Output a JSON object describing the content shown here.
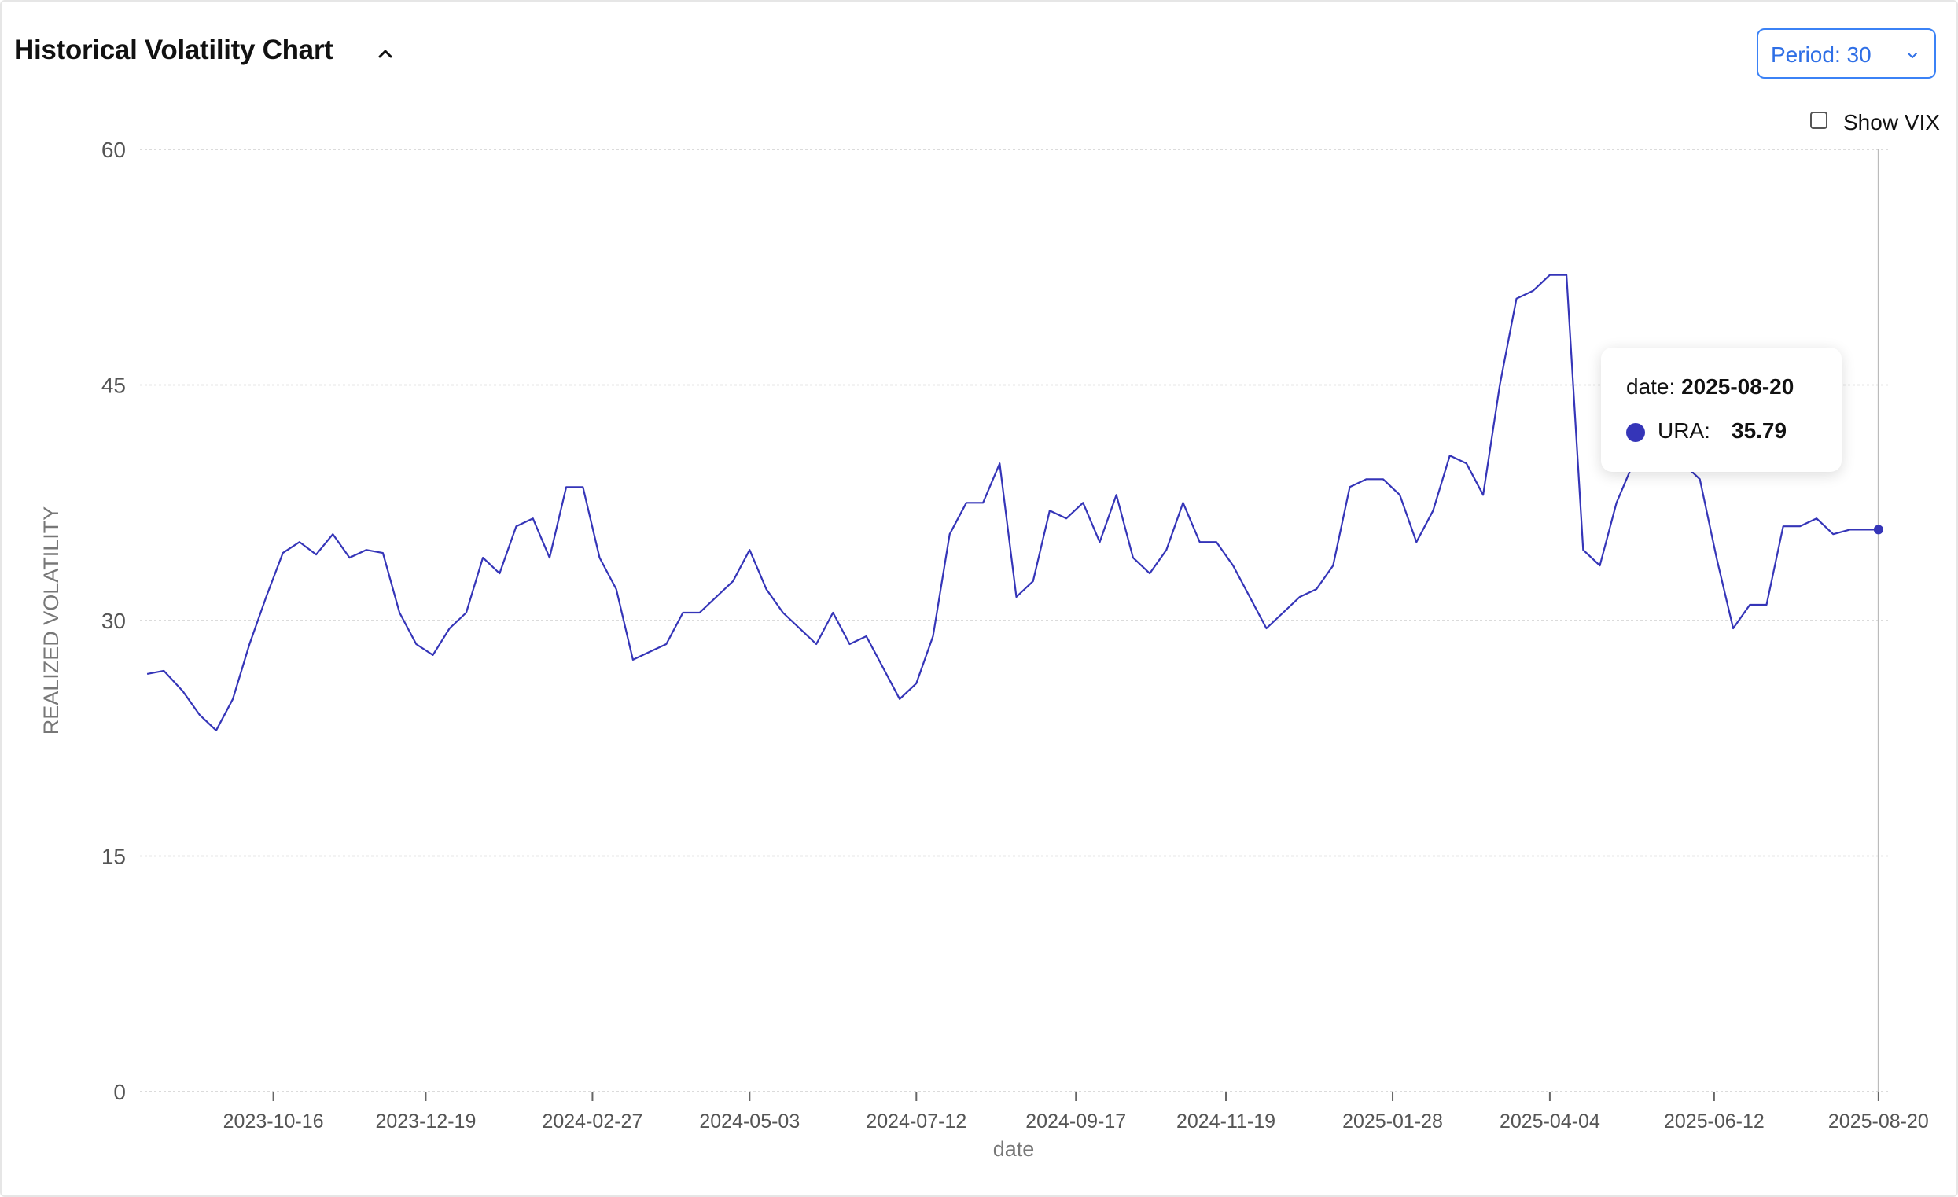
{
  "header": {
    "title": "Historical Volatility Chart",
    "collapse_icon": "chevron-up-icon"
  },
  "controls": {
    "period_label": "Period: 30",
    "period_icon": "chevron-down-icon",
    "vix_label": "Show VIX",
    "vix_checked": false
  },
  "tooltip": {
    "date_label": "date:",
    "date_value": "2025-08-20",
    "series": "URA:",
    "value": "35.79"
  },
  "colors": {
    "line": "#3535b8",
    "grid": "#cfcfcf",
    "axis_text": "#555555",
    "accent": "#3b82f6"
  },
  "chart_data": {
    "type": "line",
    "xlabel": "date",
    "ylabel": "REALIZED VOLATILITY",
    "ylim": [
      0,
      60
    ],
    "yticks": [
      0,
      15,
      30,
      45,
      60
    ],
    "xlim": [
      "2023-08-21",
      "2025-08-25"
    ],
    "xticks": [
      "2023-10-16",
      "2023-12-19",
      "2024-02-27",
      "2024-05-03",
      "2024-07-12",
      "2024-09-17",
      "2024-11-19",
      "2025-01-28",
      "2025-04-04",
      "2025-06-12",
      "2025-08-20"
    ],
    "grid": true,
    "series": [
      {
        "name": "URA",
        "x": [
          "2023-08-24",
          "2023-08-31",
          "2023-09-08",
          "2023-09-15",
          "2023-09-22",
          "2023-09-29",
          "2023-10-06",
          "2023-10-13",
          "2023-10-20",
          "2023-10-27",
          "2023-11-03",
          "2023-11-10",
          "2023-11-17",
          "2023-11-24",
          "2023-12-01",
          "2023-12-08",
          "2023-12-15",
          "2023-12-22",
          "2023-12-29",
          "2024-01-05",
          "2024-01-12",
          "2024-01-19",
          "2024-01-26",
          "2024-02-02",
          "2024-02-09",
          "2024-02-16",
          "2024-02-23",
          "2024-03-01",
          "2024-03-08",
          "2024-03-15",
          "2024-03-22",
          "2024-03-29",
          "2024-04-05",
          "2024-04-12",
          "2024-04-19",
          "2024-04-26",
          "2024-05-03",
          "2024-05-10",
          "2024-05-17",
          "2024-05-24",
          "2024-05-31",
          "2024-06-07",
          "2024-06-14",
          "2024-06-21",
          "2024-06-28",
          "2024-07-05",
          "2024-07-12",
          "2024-07-19",
          "2024-07-26",
          "2024-08-02",
          "2024-08-09",
          "2024-08-16",
          "2024-08-23",
          "2024-08-30",
          "2024-09-06",
          "2024-09-13",
          "2024-09-20",
          "2024-09-27",
          "2024-10-04",
          "2024-10-11",
          "2024-10-18",
          "2024-10-25",
          "2024-11-01",
          "2024-11-08",
          "2024-11-15",
          "2024-11-22",
          "2024-11-29",
          "2024-12-06",
          "2024-12-13",
          "2024-12-20",
          "2024-12-27",
          "2025-01-03",
          "2025-01-10",
          "2025-01-17",
          "2025-01-24",
          "2025-01-31",
          "2025-02-07",
          "2025-02-14",
          "2025-02-21",
          "2025-02-28",
          "2025-03-07",
          "2025-03-14",
          "2025-03-21",
          "2025-03-28",
          "2025-04-04",
          "2025-04-11",
          "2025-04-18",
          "2025-04-25",
          "2025-05-02",
          "2025-05-09",
          "2025-05-16",
          "2025-05-23",
          "2025-05-30",
          "2025-06-06",
          "2025-06-13",
          "2025-06-20",
          "2025-06-27",
          "2025-07-04",
          "2025-07-11",
          "2025-07-18",
          "2025-07-25",
          "2025-08-01",
          "2025-08-08",
          "2025-08-15",
          "2025-08-20"
        ],
        "y": [
          26.6,
          26.8,
          25.5,
          24.0,
          23.0,
          25.0,
          28.5,
          31.5,
          34.3,
          35.0,
          34.2,
          35.5,
          34.0,
          34.5,
          34.3,
          30.5,
          28.5,
          27.8,
          29.5,
          30.5,
          34.0,
          33.0,
          36.0,
          36.5,
          34.0,
          38.5,
          38.5,
          34.0,
          32.0,
          27.5,
          28.0,
          28.5,
          30.5,
          30.5,
          31.5,
          32.5,
          34.5,
          32.0,
          30.5,
          29.5,
          28.5,
          30.5,
          28.5,
          29.0,
          27.0,
          25.0,
          26.0,
          29.0,
          35.5,
          37.5,
          37.5,
          40.0,
          31.5,
          32.5,
          37.0,
          36.5,
          37.5,
          35.0,
          38.0,
          34.0,
          33.0,
          34.5,
          37.5,
          35.0,
          35.0,
          33.5,
          31.5,
          29.5,
          30.5,
          31.5,
          32.0,
          33.5,
          38.5,
          39.0,
          39.0,
          38.0,
          35.0,
          37.0,
          40.5,
          40.0,
          38.0,
          45.0,
          50.5,
          51.0,
          52.0,
          52.0,
          34.5,
          33.5,
          37.5,
          40.0,
          40.0,
          41.0,
          40.0,
          39.0,
          34.0,
          29.5,
          31.0,
          31.0,
          36.0,
          36.0,
          36.5,
          35.5,
          35.79,
          35.79,
          35.79
        ]
      }
    ]
  }
}
